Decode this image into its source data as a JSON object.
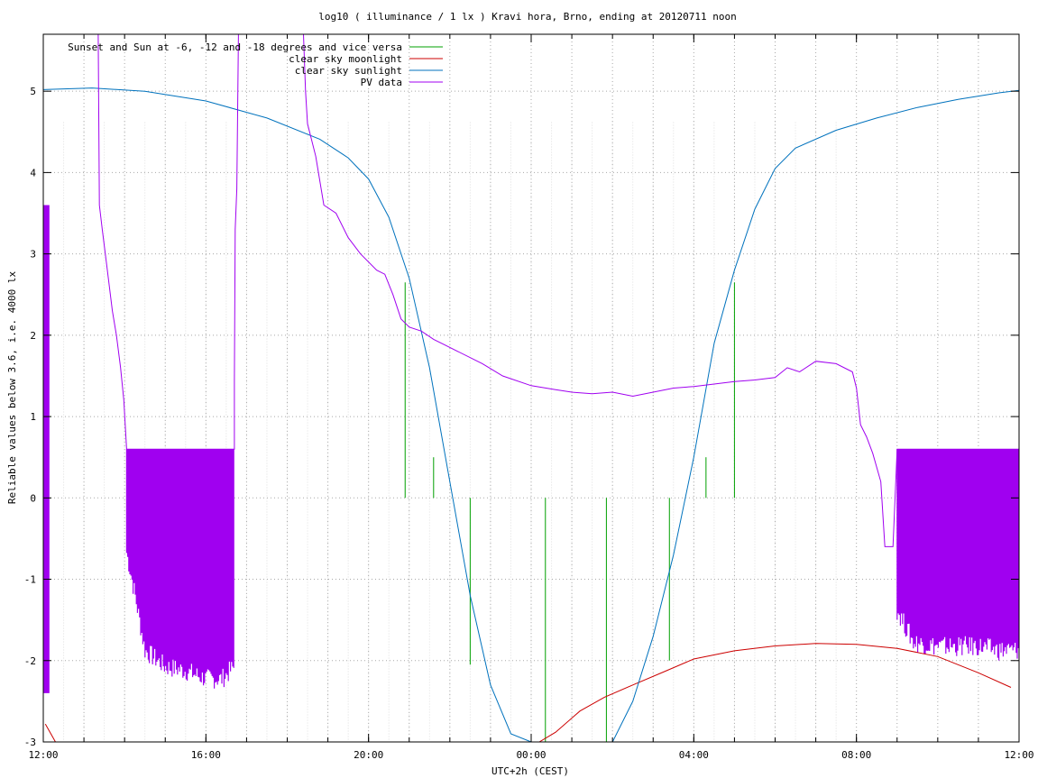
{
  "chart_data": {
    "type": "line",
    "title": "log10 ( illuminance / 1 lx ) Kravi hora, Brno, ending at 20120711 noon",
    "xlabel": "UTC+2h (CEST)",
    "ylabel": "Reliable values below 3.6, i.e. 4000 lx",
    "x_unit": "hours since 12:00 (clock time UTC+2h)",
    "xlim": [
      0,
      24
    ],
    "ylim": [
      -3,
      5.7
    ],
    "grid": true,
    "legend_position": "top-left",
    "x_ticks": [
      {
        "value": 0,
        "label": "12:00"
      },
      {
        "value": 4,
        "label": "16:00"
      },
      {
        "value": 8,
        "label": "20:00"
      },
      {
        "value": 12,
        "label": "00:00"
      },
      {
        "value": 16,
        "label": "04:00"
      },
      {
        "value": 20,
        "label": "08:00"
      },
      {
        "value": 24,
        "label": "12:00"
      }
    ],
    "y_ticks": [
      {
        "value": -3,
        "label": "-3"
      },
      {
        "value": -2,
        "label": "-2"
      },
      {
        "value": -1,
        "label": "-1"
      },
      {
        "value": 0,
        "label": "0"
      },
      {
        "value": 1,
        "label": "1"
      },
      {
        "value": 2,
        "label": "2"
      },
      {
        "value": 3,
        "label": "3"
      },
      {
        "value": 4,
        "label": "4"
      },
      {
        "value": 5,
        "label": "5"
      }
    ],
    "series": [
      {
        "name": "Sunset and Sun at -6, -12 and -18 degrees and vice versa",
        "color": "#00a000",
        "style": "impulses",
        "points": [
          [
            8.9,
            2.65
          ],
          [
            9.6,
            0.5
          ],
          [
            10.5,
            -2.05
          ],
          [
            12.35,
            -3.0
          ],
          [
            13.85,
            -3.0
          ],
          [
            15.4,
            -2.0
          ],
          [
            16.3,
            0.5
          ],
          [
            17.0,
            2.65
          ]
        ]
      },
      {
        "name": "clear sky moonlight",
        "color": "#cc0000",
        "style": "line",
        "points": [
          [
            0.05,
            -2.78
          ],
          [
            0.3,
            -3.0
          ],
          [
            12.2,
            -3.0
          ],
          [
            12.6,
            -2.88
          ],
          [
            13.2,
            -2.62
          ],
          [
            13.8,
            -2.45
          ],
          [
            14.5,
            -2.3
          ],
          [
            15.3,
            -2.13
          ],
          [
            16.0,
            -1.98
          ],
          [
            17.0,
            -1.88
          ],
          [
            18.0,
            -1.82
          ],
          [
            19.0,
            -1.79
          ],
          [
            20.0,
            -1.8
          ],
          [
            21.0,
            -1.85
          ],
          [
            22.0,
            -1.95
          ],
          [
            23.0,
            -2.15
          ],
          [
            23.8,
            -2.33
          ]
        ]
      },
      {
        "name": "clear sky sunlight",
        "color": "#0072bd",
        "style": "line",
        "points": [
          [
            0,
            5.02
          ],
          [
            1.2,
            5.04
          ],
          [
            2.5,
            5.0
          ],
          [
            4.0,
            4.88
          ],
          [
            5.5,
            4.67
          ],
          [
            6.8,
            4.41
          ],
          [
            7.5,
            4.18
          ],
          [
            8.0,
            3.92
          ],
          [
            8.5,
            3.45
          ],
          [
            9.0,
            2.7
          ],
          [
            9.5,
            1.6
          ],
          [
            10.0,
            0.2
          ],
          [
            10.5,
            -1.2
          ],
          [
            11.0,
            -2.3
          ],
          [
            11.5,
            -2.9
          ],
          [
            12.0,
            -3.0
          ],
          [
            14.0,
            -3.0
          ],
          [
            14.5,
            -2.5
          ],
          [
            15.0,
            -1.7
          ],
          [
            15.5,
            -0.7
          ],
          [
            16.0,
            0.5
          ],
          [
            16.5,
            1.9
          ],
          [
            17.0,
            2.8
          ],
          [
            17.5,
            3.55
          ],
          [
            18.0,
            4.05
          ],
          [
            18.5,
            4.3
          ],
          [
            19.5,
            4.52
          ],
          [
            20.5,
            4.67
          ],
          [
            21.5,
            4.8
          ],
          [
            22.5,
            4.9
          ],
          [
            23.5,
            4.98
          ],
          [
            24.0,
            5.01
          ]
        ]
      },
      {
        "name": "PV data",
        "color": "#a000f0",
        "style": "line",
        "points": [
          [
            1.35,
            5.7
          ],
          [
            1.38,
            3.6
          ],
          [
            1.45,
            3.3
          ],
          [
            1.55,
            2.9
          ],
          [
            1.7,
            2.3
          ],
          [
            1.8,
            2.0
          ],
          [
            1.9,
            1.6
          ],
          [
            1.98,
            1.2
          ],
          [
            2.05,
            0.6
          ],
          [
            4.7,
            0.6
          ],
          [
            4.7,
            1.45
          ],
          [
            4.72,
            3.3
          ],
          [
            4.76,
            3.8
          ],
          [
            4.8,
            5.7
          ],
          [
            6.4,
            5.7
          ],
          [
            6.45,
            5.0
          ],
          [
            6.5,
            4.6
          ],
          [
            6.7,
            4.2
          ],
          [
            6.9,
            3.6
          ],
          [
            7.2,
            3.5
          ],
          [
            7.5,
            3.2
          ],
          [
            7.8,
            3.0
          ],
          [
            8.2,
            2.8
          ],
          [
            8.4,
            2.75
          ],
          [
            8.6,
            2.5
          ],
          [
            8.8,
            2.2
          ],
          [
            9.0,
            2.1
          ],
          [
            9.3,
            2.05
          ],
          [
            9.6,
            1.95
          ],
          [
            10.2,
            1.8
          ],
          [
            10.8,
            1.65
          ],
          [
            11.3,
            1.5
          ],
          [
            12.0,
            1.38
          ],
          [
            12.6,
            1.33
          ],
          [
            13.0,
            1.3
          ],
          [
            13.5,
            1.28
          ],
          [
            14.0,
            1.3
          ],
          [
            14.5,
            1.25
          ],
          [
            15.0,
            1.3
          ],
          [
            15.5,
            1.35
          ],
          [
            16.0,
            1.37
          ],
          [
            16.5,
            1.4
          ],
          [
            17.0,
            1.43
          ],
          [
            17.5,
            1.45
          ],
          [
            18.0,
            1.48
          ],
          [
            18.3,
            1.6
          ],
          [
            18.6,
            1.55
          ],
          [
            19.0,
            1.68
          ],
          [
            19.5,
            1.65
          ],
          [
            19.9,
            1.55
          ],
          [
            20.0,
            1.35
          ],
          [
            20.1,
            0.9
          ],
          [
            20.25,
            0.75
          ],
          [
            20.4,
            0.55
          ],
          [
            20.6,
            0.2
          ],
          [
            20.7,
            -0.6
          ],
          [
            20.9,
            -0.6
          ],
          [
            21.0,
            0.6
          ],
          [
            24.0,
            0.6
          ],
          [
            24.0,
            -2.8
          ]
        ]
      }
    ],
    "noise_bands": [
      {
        "series": "PV data",
        "x_range": [
          2.05,
          4.7
        ],
        "upper": 0.6,
        "lower_points": [
          [
            2.05,
            -0.8
          ],
          [
            2.25,
            -1.3
          ],
          [
            2.5,
            -2.0
          ],
          [
            3.0,
            -2.2
          ],
          [
            3.5,
            -2.25
          ],
          [
            4.0,
            -2.35
          ],
          [
            4.4,
            -2.35
          ],
          [
            4.7,
            -2.2
          ]
        ]
      },
      {
        "series": "PV data",
        "x_range": [
          21.0,
          24.0
        ],
        "upper": 0.6,
        "lower_points": [
          [
            21.0,
            -1.5
          ],
          [
            21.4,
            -1.9
          ],
          [
            22.0,
            -1.95
          ],
          [
            22.5,
            -1.95
          ],
          [
            23.0,
            -1.95
          ],
          [
            23.5,
            -2.0
          ],
          [
            24.0,
            -2.0
          ]
        ]
      }
    ],
    "spikes": [
      {
        "series": "PV data",
        "x_range": [
          0.0,
          0.15
        ],
        "upper": 3.6,
        "lower": -2.4
      }
    ],
    "noise_ticks_top": 4.62
  }
}
